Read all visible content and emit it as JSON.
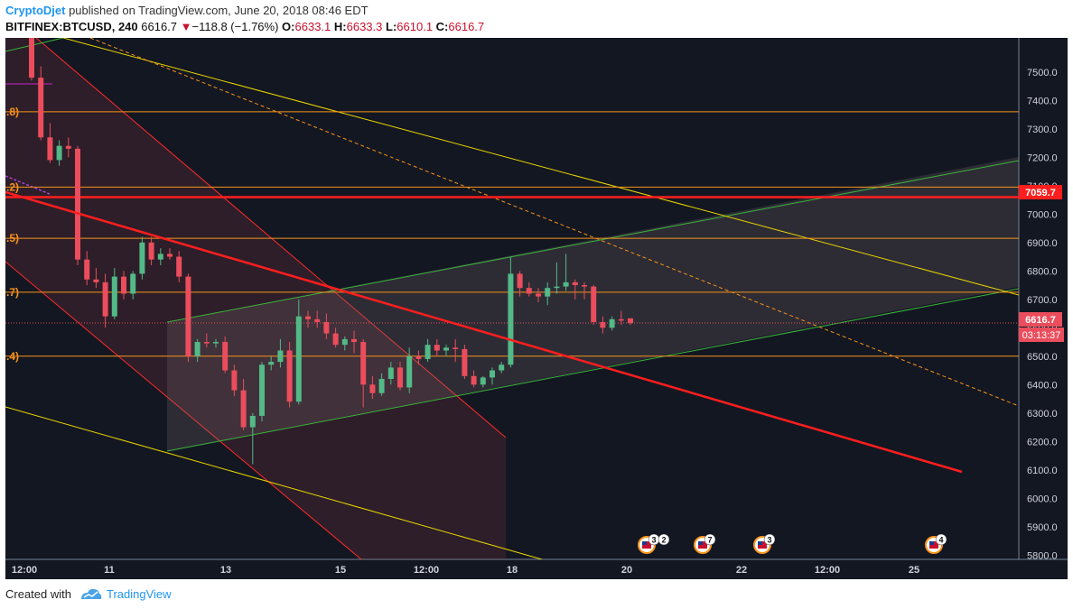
{
  "header": {
    "author": "CryptoDjet",
    "published_text": "published on TradingView.com, June 20, 2018 08:46 EDT",
    "symbol": "BITFINEX:BTCUSD, 240",
    "last": "6616.7",
    "change": "−118.8 (−1.76%)",
    "o_label": "O:",
    "o_value": "6633.1",
    "h_label": "H:",
    "h_value": "6633.3",
    "l_label": "L:",
    "l_value": "6610.1",
    "c_label": "C:",
    "c_value": "6616.7"
  },
  "footer": {
    "created_with": "Created with",
    "brand": "TradingView"
  },
  "colors": {
    "background": "#131722",
    "up": "#53b987",
    "down": "#eb4d5c",
    "orange": "#f7931a",
    "yellow": "#e8d500",
    "green": "#3cb43c",
    "red": "#ff1e1e"
  },
  "chart_data": {
    "type": "candlestick",
    "symbol": "BITFINEX:BTCUSD",
    "interval": "240",
    "y_axis_ticks": [
      "7500.0",
      "7400.0",
      "7300.0",
      "7200.0",
      "7100.0",
      "7000.0",
      "6900.0",
      "6800.0",
      "6700.0",
      "6600.0",
      "6500.0",
      "6400.0",
      "6300.0",
      "6200.0",
      "6100.0",
      "6000.0",
      "5900.0",
      "5800.0"
    ],
    "ylim": [
      5785,
      7620
    ],
    "x_axis_ticks": [
      "12:00",
      "11",
      "13",
      "15",
      "12:00",
      "18",
      "20",
      "22",
      "12:00",
      "25"
    ],
    "price_label": "6616.7",
    "countdown": "03:13:37",
    "red_level_label": "7059.7",
    "red_level": 7059.7,
    "horizontal_levels": [
      {
        "label": ".8)",
        "price": 7360
      },
      {
        "label": ".2)",
        "price": 7095
      },
      {
        "label": ".5)",
        "price": 6915
      },
      {
        "label": ".7)",
        "price": 6725
      },
      {
        "label": ".4)",
        "price": 6500
      }
    ],
    "event_badges": [
      {
        "count": "3"
      },
      {
        "count": "2"
      },
      {
        "count": "7"
      },
      {
        "count": "3"
      },
      {
        "count": "4"
      }
    ],
    "candles": [
      {
        "o": 7640,
        "h": 7680,
        "l": 7470,
        "c": 7480
      },
      {
        "o": 7480,
        "h": 7520,
        "l": 7260,
        "c": 7270
      },
      {
        "o": 7270,
        "h": 7320,
        "l": 7180,
        "c": 7190
      },
      {
        "o": 7190,
        "h": 7260,
        "l": 7170,
        "c": 7240
      },
      {
        "o": 7240,
        "h": 7270,
        "l": 7200,
        "c": 7230
      },
      {
        "o": 7230,
        "h": 7240,
        "l": 6820,
        "c": 6840
      },
      {
        "o": 6840,
        "h": 6870,
        "l": 6750,
        "c": 6770
      },
      {
        "o": 6770,
        "h": 6810,
        "l": 6740,
        "c": 6760
      },
      {
        "o": 6760,
        "h": 6790,
        "l": 6600,
        "c": 6640
      },
      {
        "o": 6640,
        "h": 6810,
        "l": 6630,
        "c": 6780
      },
      {
        "o": 6780,
        "h": 6800,
        "l": 6700,
        "c": 6720
      },
      {
        "o": 6720,
        "h": 6800,
        "l": 6700,
        "c": 6790
      },
      {
        "o": 6790,
        "h": 6920,
        "l": 6770,
        "c": 6900
      },
      {
        "o": 6900,
        "h": 6920,
        "l": 6820,
        "c": 6840
      },
      {
        "o": 6840,
        "h": 6880,
        "l": 6820,
        "c": 6860
      },
      {
        "o": 6860,
        "h": 6880,
        "l": 6840,
        "c": 6850
      },
      {
        "o": 6850,
        "h": 6870,
        "l": 6760,
        "c": 6780
      },
      {
        "o": 6780,
        "h": 6790,
        "l": 6480,
        "c": 6500
      },
      {
        "o": 6500,
        "h": 6560,
        "l": 6480,
        "c": 6550
      },
      {
        "o": 6550,
        "h": 6580,
        "l": 6530,
        "c": 6545
      },
      {
        "o": 6545,
        "h": 6560,
        "l": 6530,
        "c": 6550
      },
      {
        "o": 6550,
        "h": 6570,
        "l": 6440,
        "c": 6450
      },
      {
        "o": 6450,
        "h": 6470,
        "l": 6360,
        "c": 6380
      },
      {
        "o": 6380,
        "h": 6420,
        "l": 6240,
        "c": 6250
      },
      {
        "o": 6250,
        "h": 6300,
        "l": 6120,
        "c": 6290
      },
      {
        "o": 6290,
        "h": 6480,
        "l": 6270,
        "c": 6470
      },
      {
        "o": 6470,
        "h": 6500,
        "l": 6450,
        "c": 6480
      },
      {
        "o": 6480,
        "h": 6560,
        "l": 6460,
        "c": 6520
      },
      {
        "o": 6520,
        "h": 6550,
        "l": 6320,
        "c": 6340
      },
      {
        "o": 6340,
        "h": 6700,
        "l": 6330,
        "c": 6640
      },
      {
        "o": 6640,
        "h": 6660,
        "l": 6600,
        "c": 6630
      },
      {
        "o": 6630,
        "h": 6660,
        "l": 6600,
        "c": 6620
      },
      {
        "o": 6620,
        "h": 6650,
        "l": 6560,
        "c": 6580
      },
      {
        "o": 6580,
        "h": 6600,
        "l": 6530,
        "c": 6540
      },
      {
        "o": 6540,
        "h": 6570,
        "l": 6520,
        "c": 6560
      },
      {
        "o": 6560,
        "h": 6590,
        "l": 6510,
        "c": 6550
      },
      {
        "o": 6550,
        "h": 6560,
        "l": 6320,
        "c": 6400
      },
      {
        "o": 6400,
        "h": 6430,
        "l": 6350,
        "c": 6370
      },
      {
        "o": 6370,
        "h": 6440,
        "l": 6360,
        "c": 6420
      },
      {
        "o": 6420,
        "h": 6480,
        "l": 6400,
        "c": 6460
      },
      {
        "o": 6460,
        "h": 6480,
        "l": 6380,
        "c": 6390
      },
      {
        "o": 6390,
        "h": 6530,
        "l": 6370,
        "c": 6500
      },
      {
        "o": 6500,
        "h": 6520,
        "l": 6470,
        "c": 6490
      },
      {
        "o": 6490,
        "h": 6560,
        "l": 6480,
        "c": 6540
      },
      {
        "o": 6540,
        "h": 6560,
        "l": 6500,
        "c": 6520
      },
      {
        "o": 6520,
        "h": 6540,
        "l": 6500,
        "c": 6530
      },
      {
        "o": 6530,
        "h": 6560,
        "l": 6480,
        "c": 6525
      },
      {
        "o": 6525,
        "h": 6540,
        "l": 6420,
        "c": 6430
      },
      {
        "o": 6430,
        "h": 6450,
        "l": 6390,
        "c": 6400
      },
      {
        "o": 6400,
        "h": 6430,
        "l": 6390,
        "c": 6425
      },
      {
        "o": 6425,
        "h": 6460,
        "l": 6400,
        "c": 6450
      },
      {
        "o": 6450,
        "h": 6480,
        "l": 6440,
        "c": 6470
      },
      {
        "o": 6470,
        "h": 6850,
        "l": 6460,
        "c": 6790
      },
      {
        "o": 6790,
        "h": 6800,
        "l": 6710,
        "c": 6740
      },
      {
        "o": 6740,
        "h": 6760,
        "l": 6710,
        "c": 6720
      },
      {
        "o": 6720,
        "h": 6740,
        "l": 6690,
        "c": 6710
      },
      {
        "o": 6710,
        "h": 6760,
        "l": 6680,
        "c": 6740
      },
      {
        "o": 6740,
        "h": 6830,
        "l": 6720,
        "c": 6745
      },
      {
        "o": 6745,
        "h": 6860,
        "l": 6730,
        "c": 6760
      },
      {
        "o": 6760,
        "h": 6770,
        "l": 6700,
        "c": 6750
      },
      {
        "o": 6750,
        "h": 6760,
        "l": 6700,
        "c": 6745
      },
      {
        "o": 6745,
        "h": 6750,
        "l": 6610,
        "c": 6620
      },
      {
        "o": 6620,
        "h": 6640,
        "l": 6580,
        "c": 6600
      },
      {
        "o": 6600,
        "h": 6640,
        "l": 6590,
        "c": 6630
      },
      {
        "o": 6630,
        "h": 6660,
        "l": 6610,
        "c": 6625
      },
      {
        "o": 6633.1,
        "h": 6633.3,
        "l": 6610.1,
        "c": 6616.7
      }
    ]
  }
}
